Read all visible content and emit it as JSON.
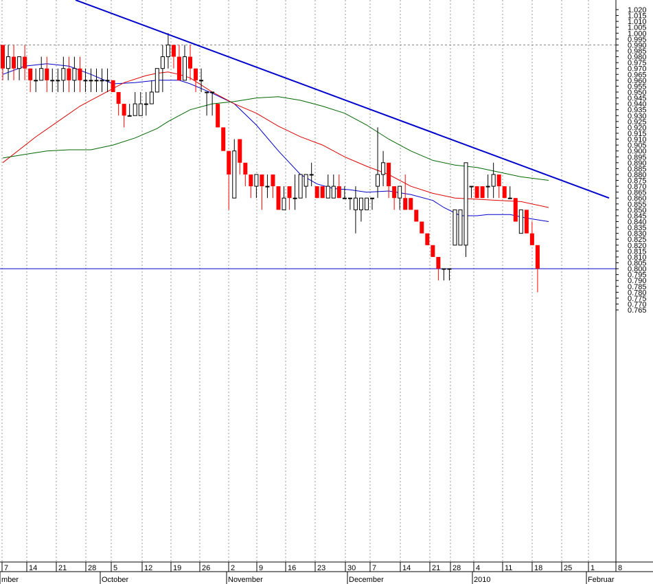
{
  "chart_data": {
    "type": "candlestick",
    "y_axis": {
      "position": "right",
      "range": [
        0.76,
        1.022
      ],
      "ticks": [
        "1.020",
        "1.015",
        "1.010",
        "1.005",
        "1.000",
        "0.995",
        "0.990",
        "0.985",
        "0.980",
        "0.975",
        "0.970",
        "0.965",
        "0.960",
        "0.955",
        "0.950",
        "0.945",
        "0.940",
        "0.935",
        "0.930",
        "0.925",
        "0.920",
        "0.915",
        "0.910",
        "0.905",
        "0.900",
        "0.895",
        "0.890",
        "0.885",
        "0.880",
        "0.875",
        "0.870",
        "0.865",
        "0.860",
        "0.855",
        "0.850",
        "0.845",
        "0.840",
        "0.835",
        "0.830",
        "0.825",
        "0.820",
        "0.815",
        "0.810",
        "0.805",
        "0.800",
        "0.795",
        "0.790",
        "0.785",
        "0.780",
        "0.775",
        "0.770",
        "0.765"
      ]
    },
    "x_axis": {
      "day_ticks": [
        "7",
        "14",
        "21",
        "28",
        "5",
        "12",
        "19",
        "26",
        "2",
        "9",
        "16",
        "23",
        "30",
        "7",
        "14",
        "21",
        "28",
        "4",
        "11",
        "18",
        "25",
        "1",
        "8"
      ],
      "month_labels": [
        "mber",
        "October",
        "November",
        "December",
        "2010",
        "Februar"
      ]
    },
    "grid": "vertical dotted at weekly ticks",
    "horizontal_lines": [
      {
        "value": 0.99,
        "style": "dotted",
        "color": "#808080"
      },
      {
        "value": 0.8,
        "style": "solid",
        "color": "#0000cc"
      }
    ],
    "trendline": {
      "color": "#0000cc",
      "from": {
        "x_index": 15,
        "y": 1.0
      },
      "to": {
        "x_index": 99,
        "y": 0.86
      }
    },
    "candles": [
      {
        "o": 0.99,
        "h": 0.99,
        "l": 0.96,
        "c": 0.97
      },
      {
        "o": 0.97,
        "h": 0.99,
        "l": 0.96,
        "c": 0.98
      },
      {
        "o": 0.98,
        "h": 0.99,
        "l": 0.96,
        "c": 0.97
      },
      {
        "o": 0.97,
        "h": 0.98,
        "l": 0.96,
        "c": 0.98
      },
      {
        "o": 0.98,
        "h": 0.99,
        "l": 0.96,
        "c": 0.97
      },
      {
        "o": 0.97,
        "h": 0.97,
        "l": 0.95,
        "c": 0.96
      },
      {
        "o": 0.96,
        "h": 0.97,
        "l": 0.95,
        "c": 0.96
      },
      {
        "o": 0.96,
        "h": 0.98,
        "l": 0.96,
        "c": 0.97
      },
      {
        "o": 0.97,
        "h": 0.98,
        "l": 0.95,
        "c": 0.96
      },
      {
        "o": 0.96,
        "h": 0.97,
        "l": 0.95,
        "c": 0.96
      },
      {
        "o": 0.96,
        "h": 0.97,
        "l": 0.95,
        "c": 0.96
      },
      {
        "o": 0.96,
        "h": 0.98,
        "l": 0.95,
        "c": 0.97
      },
      {
        "o": 0.97,
        "h": 0.98,
        "l": 0.95,
        "c": 0.96
      },
      {
        "o": 0.96,
        "h": 0.98,
        "l": 0.95,
        "c": 0.97
      },
      {
        "o": 0.97,
        "h": 0.98,
        "l": 0.95,
        "c": 0.96
      },
      {
        "o": 0.96,
        "h": 0.97,
        "l": 0.95,
        "c": 0.96
      },
      {
        "o": 0.96,
        "h": 0.97,
        "l": 0.95,
        "c": 0.96
      },
      {
        "o": 0.96,
        "h": 0.97,
        "l": 0.95,
        "c": 0.96
      },
      {
        "o": 0.96,
        "h": 0.97,
        "l": 0.95,
        "c": 0.96
      },
      {
        "o": 0.96,
        "h": 0.97,
        "l": 0.95,
        "c": 0.96
      },
      {
        "o": 0.96,
        "h": 0.96,
        "l": 0.95,
        "c": 0.95
      },
      {
        "o": 0.95,
        "h": 0.95,
        "l": 0.93,
        "c": 0.94
      },
      {
        "o": 0.94,
        "h": 0.94,
        "l": 0.92,
        "c": 0.93
      },
      {
        "o": 0.93,
        "h": 0.94,
        "l": 0.93,
        "c": 0.93
      },
      {
        "o": 0.93,
        "h": 0.95,
        "l": 0.93,
        "c": 0.94
      },
      {
        "o": 0.93,
        "h": 0.95,
        "l": 0.93,
        "c": 0.94
      },
      {
        "o": 0.94,
        "h": 0.95,
        "l": 0.93,
        "c": 0.94
      },
      {
        "o": 0.94,
        "h": 0.96,
        "l": 0.94,
        "c": 0.95
      },
      {
        "o": 0.95,
        "h": 0.97,
        "l": 0.95,
        "c": 0.97
      },
      {
        "o": 0.97,
        "h": 0.99,
        "l": 0.95,
        "c": 0.98
      },
      {
        "o": 0.98,
        "h": 1.0,
        "l": 0.97,
        "c": 0.99
      },
      {
        "o": 0.99,
        "h": 0.99,
        "l": 0.97,
        "c": 0.98
      },
      {
        "o": 0.98,
        "h": 0.99,
        "l": 0.96,
        "c": 0.96
      },
      {
        "o": 0.96,
        "h": 0.99,
        "l": 0.96,
        "c": 0.98
      },
      {
        "o": 0.98,
        "h": 0.99,
        "l": 0.96,
        "c": 0.97
      },
      {
        "o": 0.97,
        "h": 0.97,
        "l": 0.95,
        "c": 0.96
      },
      {
        "o": 0.96,
        "h": 0.97,
        "l": 0.95,
        "c": 0.96
      },
      {
        "o": 0.95,
        "h": 0.95,
        "l": 0.93,
        "c": 0.95
      },
      {
        "o": 0.95,
        "h": 0.95,
        "l": 0.93,
        "c": 0.95
      },
      {
        "o": 0.94,
        "h": 0.94,
        "l": 0.92,
        "c": 0.92
      },
      {
        "o": 0.92,
        "h": 0.92,
        "l": 0.9,
        "c": 0.9
      },
      {
        "o": 0.9,
        "h": 0.9,
        "l": 0.85,
        "c": 0.88
      },
      {
        "o": 0.86,
        "h": 0.91,
        "l": 0.86,
        "c": 0.9
      },
      {
        "o": 0.91,
        "h": 0.91,
        "l": 0.88,
        "c": 0.89
      },
      {
        "o": 0.89,
        "h": 0.89,
        "l": 0.87,
        "c": 0.88
      },
      {
        "o": 0.88,
        "h": 0.88,
        "l": 0.86,
        "c": 0.87
      },
      {
        "o": 0.87,
        "h": 0.88,
        "l": 0.86,
        "c": 0.88
      },
      {
        "o": 0.88,
        "h": 0.88,
        "l": 0.85,
        "c": 0.87
      },
      {
        "o": 0.87,
        "h": 0.88,
        "l": 0.86,
        "c": 0.87
      },
      {
        "o": 0.88,
        "h": 0.88,
        "l": 0.86,
        "c": 0.87
      },
      {
        "o": 0.87,
        "h": 0.87,
        "l": 0.85,
        "c": 0.85
      },
      {
        "o": 0.85,
        "h": 0.87,
        "l": 0.85,
        "c": 0.86
      },
      {
        "o": 0.87,
        "h": 0.87,
        "l": 0.85,
        "c": 0.86
      },
      {
        "o": 0.86,
        "h": 0.88,
        "l": 0.85,
        "c": 0.86
      },
      {
        "o": 0.86,
        "h": 0.88,
        "l": 0.86,
        "c": 0.88
      },
      {
        "o": 0.87,
        "h": 0.88,
        "l": 0.86,
        "c": 0.88
      },
      {
        "o": 0.88,
        "h": 0.89,
        "l": 0.87,
        "c": 0.88
      },
      {
        "o": 0.87,
        "h": 0.87,
        "l": 0.86,
        "c": 0.86
      },
      {
        "o": 0.87,
        "h": 0.87,
        "l": 0.86,
        "c": 0.86
      },
      {
        "o": 0.86,
        "h": 0.88,
        "l": 0.86,
        "c": 0.87
      },
      {
        "o": 0.86,
        "h": 0.88,
        "l": 0.86,
        "c": 0.87
      },
      {
        "o": 0.87,
        "h": 0.88,
        "l": 0.86,
        "c": 0.86
      },
      {
        "o": 0.86,
        "h": 0.87,
        "l": 0.86,
        "c": 0.86
      },
      {
        "o": 0.86,
        "h": 0.86,
        "l": 0.85,
        "c": 0.86
      },
      {
        "o": 0.85,
        "h": 0.87,
        "l": 0.83,
        "c": 0.86
      },
      {
        "o": 0.85,
        "h": 0.86,
        "l": 0.84,
        "c": 0.86
      },
      {
        "o": 0.85,
        "h": 0.86,
        "l": 0.85,
        "c": 0.86
      },
      {
        "o": 0.86,
        "h": 0.86,
        "l": 0.85,
        "c": 0.86
      },
      {
        "o": 0.87,
        "h": 0.92,
        "l": 0.86,
        "c": 0.88
      },
      {
        "o": 0.88,
        "h": 0.9,
        "l": 0.87,
        "c": 0.89
      },
      {
        "o": 0.89,
        "h": 0.89,
        "l": 0.86,
        "c": 0.87
      },
      {
        "o": 0.87,
        "h": 0.87,
        "l": 0.85,
        "c": 0.86
      },
      {
        "o": 0.86,
        "h": 0.87,
        "l": 0.85,
        "c": 0.87
      },
      {
        "o": 0.86,
        "h": 0.88,
        "l": 0.85,
        "c": 0.85
      },
      {
        "o": 0.86,
        "h": 0.86,
        "l": 0.85,
        "c": 0.85
      },
      {
        "o": 0.85,
        "h": 0.85,
        "l": 0.84,
        "c": 0.84
      },
      {
        "o": 0.84,
        "h": 0.84,
        "l": 0.83,
        "c": 0.83
      },
      {
        "o": 0.83,
        "h": 0.83,
        "l": 0.82,
        "c": 0.82
      },
      {
        "o": 0.82,
        "h": 0.82,
        "l": 0.81,
        "c": 0.81
      },
      {
        "o": 0.81,
        "h": 0.81,
        "l": 0.79,
        "c": 0.8
      },
      {
        "o": 0.8,
        "h": 0.8,
        "l": 0.79,
        "c": 0.8
      },
      {
        "o": 0.8,
        "h": 0.8,
        "l": 0.79,
        "c": 0.8
      },
      {
        "o": 0.82,
        "h": 0.85,
        "l": 0.82,
        "c": 0.85
      },
      {
        "o": 0.82,
        "h": 0.85,
        "l": 0.82,
        "c": 0.85
      },
      {
        "o": 0.82,
        "h": 0.89,
        "l": 0.81,
        "c": 0.89
      },
      {
        "o": 0.87,
        "h": 0.87,
        "l": 0.86,
        "c": 0.87
      },
      {
        "o": 0.87,
        "h": 0.87,
        "l": 0.86,
        "c": 0.86
      },
      {
        "o": 0.87,
        "h": 0.87,
        "l": 0.86,
        "c": 0.86
      },
      {
        "o": 0.87,
        "h": 0.88,
        "l": 0.86,
        "c": 0.87
      },
      {
        "o": 0.87,
        "h": 0.89,
        "l": 0.86,
        "c": 0.88
      },
      {
        "o": 0.88,
        "h": 0.88,
        "l": 0.86,
        "c": 0.87
      },
      {
        "o": 0.87,
        "h": 0.87,
        "l": 0.86,
        "c": 0.86
      },
      {
        "o": 0.86,
        "h": 0.87,
        "l": 0.86,
        "c": 0.86
      },
      {
        "o": 0.86,
        "h": 0.86,
        "l": 0.84,
        "c": 0.84
      },
      {
        "o": 0.83,
        "h": 0.85,
        "l": 0.83,
        "c": 0.85
      },
      {
        "o": 0.85,
        "h": 0.85,
        "l": 0.83,
        "c": 0.83
      },
      {
        "o": 0.83,
        "h": 0.84,
        "l": 0.82,
        "c": 0.82
      },
      {
        "o": 0.82,
        "h": 0.82,
        "l": 0.78,
        "c": 0.8
      }
    ],
    "moving_averages": [
      {
        "color": "#0000cc",
        "points": [
          [
            0,
            0.965
          ],
          [
            4,
            0.972
          ],
          [
            8,
            0.974
          ],
          [
            12,
            0.972
          ],
          [
            16,
            0.965
          ],
          [
            20,
            0.957
          ],
          [
            24,
            0.958
          ],
          [
            28,
            0.96
          ],
          [
            32,
            0.96
          ],
          [
            34,
            0.957
          ],
          [
            38,
            0.949
          ],
          [
            42,
            0.94
          ],
          [
            46,
            0.922
          ],
          [
            50,
            0.9
          ],
          [
            54,
            0.88
          ],
          [
            57,
            0.872
          ],
          [
            60,
            0.868
          ],
          [
            63,
            0.867
          ],
          [
            66,
            0.865
          ],
          [
            70,
            0.866
          ],
          [
            74,
            0.863
          ],
          [
            78,
            0.858
          ],
          [
            80,
            0.852
          ],
          [
            83,
            0.845
          ],
          [
            86,
            0.845
          ],
          [
            88,
            0.846
          ],
          [
            92,
            0.846
          ],
          [
            95,
            0.843
          ],
          [
            99,
            0.84
          ]
        ]
      },
      {
        "color": "#dd0000",
        "points": [
          [
            0,
            0.89
          ],
          [
            6,
            0.912
          ],
          [
            10,
            0.925
          ],
          [
            14,
            0.938
          ],
          [
            18,
            0.948
          ],
          [
            22,
            0.958
          ],
          [
            26,
            0.964
          ],
          [
            28,
            0.966
          ],
          [
            30,
            0.967
          ],
          [
            32,
            0.965
          ],
          [
            34,
            0.962
          ],
          [
            38,
            0.95
          ],
          [
            42,
            0.94
          ],
          [
            46,
            0.932
          ],
          [
            50,
            0.921
          ],
          [
            54,
            0.912
          ],
          [
            58,
            0.905
          ],
          [
            62,
            0.895
          ],
          [
            66,
            0.887
          ],
          [
            70,
            0.88
          ],
          [
            74,
            0.87
          ],
          [
            78,
            0.864
          ],
          [
            82,
            0.86
          ],
          [
            86,
            0.859
          ],
          [
            90,
            0.858
          ],
          [
            94,
            0.857
          ],
          [
            99,
            0.852
          ]
        ]
      },
      {
        "color": "#006600",
        "points": [
          [
            0,
            0.894
          ],
          [
            4,
            0.897
          ],
          [
            8,
            0.9
          ],
          [
            12,
            0.901
          ],
          [
            16,
            0.901
          ],
          [
            20,
            0.905
          ],
          [
            24,
            0.911
          ],
          [
            28,
            0.919
          ],
          [
            30,
            0.925
          ],
          [
            34,
            0.935
          ],
          [
            38,
            0.94
          ],
          [
            42,
            0.942
          ],
          [
            46,
            0.945
          ],
          [
            50,
            0.946
          ],
          [
            54,
            0.943
          ],
          [
            58,
            0.938
          ],
          [
            62,
            0.932
          ],
          [
            66,
            0.922
          ],
          [
            70,
            0.91
          ],
          [
            74,
            0.9
          ],
          [
            78,
            0.892
          ],
          [
            82,
            0.888
          ],
          [
            86,
            0.886
          ],
          [
            90,
            0.882
          ],
          [
            94,
            0.878
          ],
          [
            99,
            0.875
          ]
        ]
      }
    ]
  }
}
